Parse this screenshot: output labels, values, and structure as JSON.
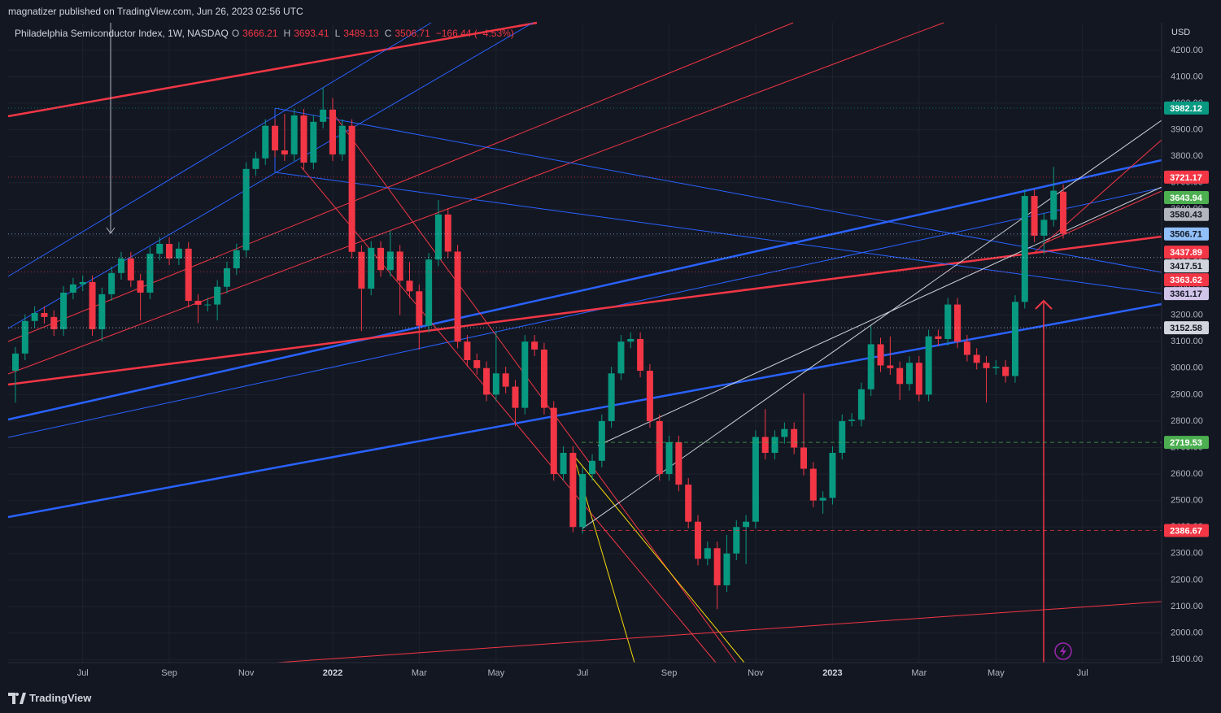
{
  "header": {
    "byline": "magnatizer published on TradingView.com, Jun 26, 2023 02:56 UTC"
  },
  "footer": {
    "brand": "TradingView"
  },
  "chart_data": {
    "type": "candlestick",
    "title": "Philadelphia Semiconductor Index, 1W, NASDAQ",
    "ohlc_keys": [
      "O",
      "H",
      "L",
      "C"
    ],
    "change": "−166.44 (−4.53%)",
    "currency": "USD",
    "up_color": "#089981",
    "down_color": "#f23645",
    "grid": true,
    "categories": [
      null,
      null,
      null,
      null,
      null,
      null,
      null,
      "Jul",
      null,
      null,
      null,
      null,
      null,
      null,
      null,
      null,
      "Sep",
      null,
      null,
      null,
      null,
      null,
      null,
      null,
      "Nov",
      null,
      null,
      null,
      null,
      null,
      null,
      null,
      null,
      "2022",
      null,
      null,
      null,
      null,
      null,
      null,
      null,
      null,
      "Mar",
      null,
      null,
      null,
      null,
      null,
      null,
      null,
      "May",
      null,
      null,
      null,
      null,
      null,
      null,
      null,
      null,
      "Jul",
      null,
      null,
      null,
      null,
      null,
      null,
      null,
      null,
      "Sep",
      null,
      null,
      null,
      null,
      null,
      null,
      null,
      null,
      "Nov",
      null,
      null,
      null,
      null,
      null,
      null,
      null,
      "2023",
      null,
      null,
      null,
      null,
      null,
      null,
      null,
      null,
      "Mar",
      null,
      null,
      null,
      null,
      null,
      null,
      null,
      "May",
      null,
      null,
      null,
      null,
      null,
      null,
      null,
      null,
      "Jul",
      null,
      null,
      null,
      null,
      null,
      null,
      null,
      null
    ],
    "open": [
      2990,
      3055,
      3178,
      3208,
      3193,
      3147,
      3285,
      3316,
      3325,
      3147,
      3279,
      3359,
      3414,
      3331,
      3285,
      3432,
      3469,
      3414,
      3451,
      3254,
      3239,
      3240,
      3307,
      3377,
      3445,
      3752,
      3792,
      3915,
      3822,
      3807,
      3954,
      3776,
      3930,
      3976,
      3807,
      3915,
      3439,
      3300,
      3454,
      3370,
      3440,
      3330,
      3290,
      3160,
      3410,
      3580,
      3440,
      3100,
      3030,
      3000,
      2900,
      2980,
      2930,
      2850,
      3100,
      3070,
      2850,
      2600,
      2680,
      2400,
      2600,
      2650,
      2800,
      2980,
      3100,
      3110,
      2990,
      2800,
      2600,
      2720,
      2560,
      2420,
      2280,
      2320,
      2180,
      2300,
      2400,
      2420,
      2740,
      2680,
      2740,
      2770,
      2700,
      2620,
      2500,
      2510,
      2680,
      2800,
      2805,
      2920,
      3090,
      3010,
      3000,
      2940,
      3020,
      2900,
      3120,
      3110,
      3240,
      3100,
      3050,
      3020,
      3000,
      3005,
      2970,
      3250,
      3650,
      3500,
      3560,
      3666.21,
      null,
      null,
      null,
      null,
      null,
      null,
      null,
      null,
      null,
      null
    ],
    "high": [
      3080,
      3203,
      3233,
      3233,
      3218,
      3310,
      3341,
      3350,
      3350,
      3304,
      3384,
      3439,
      3439,
      3356,
      3457,
      3494,
      3494,
      3476,
      3476,
      3279,
      3265,
      3332,
      3402,
      3470,
      3777,
      3817,
      3940,
      3940,
      3960,
      3979,
      3979,
      3955,
      4060,
      4020,
      3940,
      3940,
      3464,
      3479,
      3479,
      3520,
      3465,
      3400,
      3315,
      3435,
      3635,
      3605,
      3465,
      3125,
      3055,
      3025,
      3140,
      3005,
      2955,
      3125,
      3125,
      3095,
      2875,
      2705,
      2705,
      2625,
      2675,
      2825,
      3005,
      3125,
      3135,
      3135,
      3015,
      2825,
      2745,
      2745,
      2585,
      2445,
      2345,
      2345,
      2370,
      2425,
      2445,
      2765,
      2845,
      2765,
      2795,
      2795,
      2905,
      2645,
      2535,
      2705,
      2825,
      2830,
      2945,
      3160,
      3115,
      3120,
      3025,
      3045,
      3045,
      3145,
      3145,
      3265,
      3265,
      3125,
      3075,
      3045,
      3030,
      3030,
      3275,
      3675,
      3675,
      3585,
      3760,
      3693.41,
      null,
      null,
      null,
      null,
      null,
      null,
      null,
      null,
      null,
      null
    ],
    "low": [
      2870,
      3030,
      3153,
      3168,
      3122,
      3122,
      3260,
      3291,
      3122,
      3100,
      3254,
      3334,
      3306,
      3180,
      3260,
      3407,
      3389,
      3389,
      3229,
      3170,
      3214,
      3180,
      3282,
      3352,
      3420,
      3727,
      3767,
      3797,
      3782,
      3782,
      3751,
      3751,
      3905,
      3782,
      3782,
      3414,
      3140,
      3275,
      3345,
      3345,
      3200,
      3265,
      3070,
      3135,
      3385,
      3415,
      3075,
      3005,
      2975,
      2875,
      2875,
      2905,
      2780,
      2825,
      3045,
      2825,
      2575,
      2575,
      2380,
      2375,
      2575,
      2625,
      2775,
      2955,
      3075,
      2965,
      2775,
      2575,
      2575,
      2535,
      2395,
      2255,
      2255,
      2090,
      2155,
      2275,
      2260,
      2395,
      2655,
      2655,
      2715,
      2675,
      2595,
      2475,
      2450,
      2485,
      2655,
      2780,
      2780,
      2895,
      2985,
      2975,
      2880,
      2915,
      2875,
      2875,
      3085,
      3085,
      3075,
      3025,
      2995,
      2870,
      2975,
      2945,
      2945,
      3225,
      3475,
      3430,
      3535,
      3489.13,
      null,
      null,
      null,
      null,
      null,
      null,
      null,
      null,
      null,
      null
    ],
    "close": [
      3055,
      3178,
      3208,
      3193,
      3147,
      3285,
      3316,
      3325,
      3147,
      3279,
      3359,
      3414,
      3331,
      3285,
      3432,
      3469,
      3414,
      3451,
      3254,
      3239,
      3240,
      3307,
      3377,
      3445,
      3752,
      3792,
      3915,
      3822,
      3807,
      3954,
      3776,
      3930,
      3976,
      3807,
      3915,
      3439,
      3300,
      3454,
      3370,
      3440,
      3330,
      3290,
      3160,
      3410,
      3580,
      3440,
      3100,
      3030,
      3000,
      2900,
      2980,
      2930,
      2850,
      3100,
      3070,
      2850,
      2600,
      2680,
      2400,
      2600,
      2650,
      2800,
      2980,
      3100,
      3110,
      2990,
      2800,
      2600,
      2720,
      2560,
      2420,
      2280,
      2320,
      2180,
      2300,
      2400,
      2420,
      2740,
      2680,
      2740,
      2770,
      2700,
      2620,
      2500,
      2510,
      2680,
      2800,
      2805,
      2920,
      3090,
      3010,
      3000,
      2940,
      3020,
      2900,
      3120,
      3110,
      3240,
      3100,
      3050,
      3020,
      3000,
      3005,
      2970,
      3250,
      3650,
      3500,
      3560,
      3670,
      3506.71,
      null,
      null,
      null,
      null,
      null,
      null,
      null,
      null,
      null,
      null
    ],
    "ylim": [
      1888,
      4304
    ],
    "yticks": [
      {
        "value": 1900,
        "label": "1900.00"
      },
      {
        "value": 2000,
        "label": "2000.00"
      },
      {
        "value": 2100,
        "label": "2100.00"
      },
      {
        "value": 2200,
        "label": "2200.00"
      },
      {
        "value": 2300,
        "label": "2300.00"
      },
      {
        "value": 2400,
        "label": "2400.00"
      },
      {
        "value": 2500,
        "label": "2500.00"
      },
      {
        "value": 2600,
        "label": "2600.00"
      },
      {
        "value": 2700,
        "label": "2700.00"
      },
      {
        "value": 2800,
        "label": "2800.00"
      },
      {
        "value": 2900,
        "label": "2900.00"
      },
      {
        "value": 3000,
        "label": "3000.00"
      },
      {
        "value": 3100,
        "label": "3100.00"
      },
      {
        "value": 3200,
        "label": "3200.00"
      },
      {
        "value": 3300,
        "label": "3300.00"
      },
      {
        "value": 3400,
        "label": "3400.00"
      },
      {
        "value": 3500,
        "label": "3500.00"
      },
      {
        "value": 3600,
        "label": "3600.00"
      },
      {
        "value": 3700,
        "label": "3700.00"
      },
      {
        "value": 3800,
        "label": "3800.00"
      },
      {
        "value": 3900,
        "label": "3900.00"
      },
      {
        "value": 4000,
        "label": "4000.00"
      },
      {
        "value": 4100,
        "label": "4100.00"
      },
      {
        "value": 4200,
        "label": "4200.00"
      }
    ],
    "price_labels": [
      {
        "value": 3982.12,
        "color": "#089981",
        "text_color": "#ffffff",
        "line": "dotted"
      },
      {
        "value": 3721.17,
        "color": "#f23645",
        "text_color": "#ffffff",
        "line": "dotted"
      },
      {
        "value": 3643.94,
        "color": "#4caf50",
        "text_color": "#ffffff"
      },
      {
        "value": 3580.43,
        "color": "#b2b5be",
        "text_color": "#131722"
      },
      {
        "value": 3506.71,
        "color": "#90bff9",
        "text_color": "#131722",
        "line": "dotted"
      },
      {
        "value": 3437.89,
        "color": "#f23645",
        "text_color": "#ffffff"
      },
      {
        "value": 3417.51,
        "color": "#d1d4dc",
        "text_color": "#131722",
        "line": "dotted"
      },
      {
        "value": 3363.62,
        "color": "#f23645",
        "text_color": "#ffffff",
        "line": "dotted"
      },
      {
        "value": 3361.17,
        "color": "#d1c4e9",
        "text_color": "#131722"
      },
      {
        "value": 3152.58,
        "color": "#d1d4dc",
        "text_color": "#131722",
        "line": "dotted"
      },
      {
        "value": 2719.53,
        "color": "#4caf50",
        "text_color": "#ffffff",
        "line": "dashed"
      },
      {
        "value": 2386.67,
        "color": "#f23645",
        "text_color": "#ffffff",
        "line": "dashed"
      }
    ]
  }
}
